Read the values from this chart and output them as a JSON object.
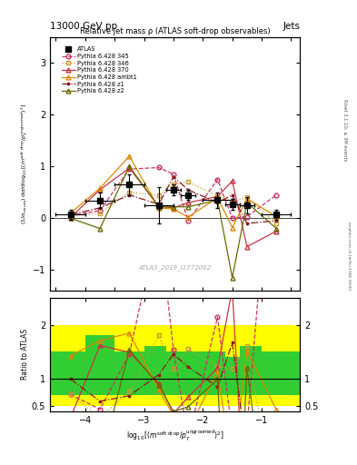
{
  "title_top_left": "13000 GeV pp",
  "title_top_right": "Jets",
  "plot_title": "Relative jet mass ρ (ATLAS soft-drop observables)",
  "watermark": "ATLAS_2019_I1772062",
  "right_label_top": "Rivet 3.1.10, ≥ 3M events",
  "right_label_bot": "mcplots.cern.ch [arXiv:1306.3436]",
  "xlabel": "log$_{10}$[(m$^{soft drop}$/p$_T^{ungroomed}$)$^2$]",
  "ylabel": "(1/σ$_{resum}$) dσ/d log$_{10}$[(m$^{soft drop}$/p$_T^{ungroomed}$)$^2$]",
  "ratio_ylabel": "Ratio to ATLAS",
  "ylim_main": [
    -1.4,
    3.5
  ],
  "ylim_ratio": [
    0.4,
    2.5
  ],
  "xlim": [
    -4.6,
    -0.35
  ],
  "x_points": [
    -4.25,
    -3.75,
    -3.25,
    -2.75,
    -2.5,
    -2.25,
    -1.75,
    -1.5,
    -1.25,
    -0.75
  ],
  "atlas_y": [
    0.07,
    0.34,
    0.65,
    0.25,
    0.55,
    0.45,
    0.35,
    0.27,
    0.25,
    0.07
  ],
  "atlas_yerr": [
    0.1,
    0.15,
    0.2,
    0.35,
    0.1,
    0.1,
    0.15,
    0.1,
    0.15,
    0.1
  ],
  "atlas_xerr": [
    0.25,
    0.25,
    0.25,
    0.25,
    0.125,
    0.125,
    0.25,
    0.125,
    0.125,
    0.25
  ],
  "p345_y": [
    0.05,
    0.15,
    0.95,
    0.98,
    0.85,
    -0.05,
    0.75,
    0.0,
    0.03,
    0.45
  ],
  "p346_y": [
    0.05,
    0.1,
    0.5,
    0.45,
    0.65,
    0.7,
    0.43,
    0.32,
    0.4,
    -0.1
  ],
  "p370_y": [
    0.02,
    0.55,
    0.97,
    0.23,
    0.2,
    0.3,
    0.42,
    0.72,
    -0.55,
    -0.25
  ],
  "pambt1_y": [
    0.1,
    0.58,
    1.2,
    0.2,
    0.18,
    0.02,
    0.4,
    -0.18,
    0.38,
    0.03
  ],
  "pz1_y": [
    0.07,
    0.2,
    0.45,
    0.27,
    0.8,
    0.55,
    0.3,
    0.45,
    -0.1,
    -0.05
  ],
  "pz2_y": [
    0.0,
    -0.2,
    1.0,
    0.22,
    0.22,
    0.22,
    0.35,
    -1.15,
    0.3,
    -0.2
  ],
  "c345": "#cc3366",
  "c346": "#cc9933",
  "c370": "#cc3344",
  "cambt1": "#dd8800",
  "cz1": "#8b1a1a",
  "cz2": "#6b6b00",
  "band_edges": [
    -4.6,
    -4.0,
    -3.5,
    -3.0,
    -2.625,
    -2.375,
    -2.0,
    -1.625,
    -1.375,
    -1.0,
    -0.35
  ],
  "yellow_lo": [
    0.5,
    0.5,
    0.5,
    0.5,
    0.5,
    0.5,
    0.5,
    0.5,
    0.5,
    0.5
  ],
  "yellow_hi": [
    2.0,
    2.0,
    2.0,
    2.0,
    2.0,
    2.0,
    2.0,
    2.0,
    2.0,
    2.0
  ],
  "green_lo": [
    0.7,
    0.7,
    0.7,
    0.7,
    0.7,
    0.7,
    0.7,
    0.7,
    0.7,
    0.7
  ],
  "green_hi": [
    1.5,
    1.8,
    1.5,
    1.6,
    1.5,
    1.5,
    1.5,
    1.4,
    1.6,
    1.5
  ]
}
